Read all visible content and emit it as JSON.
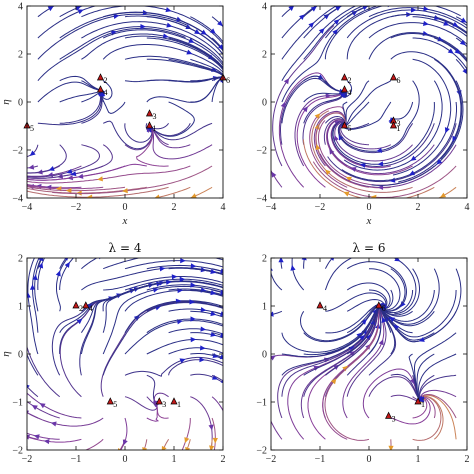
{
  "chart_data": [
    {
      "type": "streamplot",
      "title": "",
      "xlabel": "x",
      "ylabel": "η",
      "xlim": [
        -4,
        4
      ],
      "ylim": [
        -4,
        4
      ],
      "xticks": [
        -4,
        -2,
        0,
        2,
        4
      ],
      "yticks": [
        -4,
        -2,
        0,
        2,
        4
      ],
      "xtick_labels": [
        "−4",
        "−2",
        "0",
        "2",
        "4"
      ],
      "ytick_labels": [
        "−4",
        "−2",
        "0",
        "2",
        "4"
      ],
      "critical_points": [
        {
          "label": "2",
          "x": -1.0,
          "y": 1.0
        },
        {
          "label": "4",
          "x": -1.0,
          "y": 0.5
        },
        {
          "label": "3",
          "x": 1.0,
          "y": -0.5
        },
        {
          "label": "1",
          "x": 1.0,
          "y": -1.0
        },
        {
          "label": "5",
          "x": -4.0,
          "y": -1.0
        },
        {
          "label": "6",
          "x": 4.0,
          "y": 1.0
        }
      ]
    },
    {
      "type": "streamplot",
      "title": "",
      "xlabel": "x",
      "ylabel": "",
      "xlim": [
        -4,
        4
      ],
      "ylim": [
        -4,
        4
      ],
      "xticks": [
        -4,
        -2,
        0,
        2,
        4
      ],
      "yticks": [
        -4,
        -2,
        0,
        2,
        4
      ],
      "xtick_labels": [
        "−4",
        "−2",
        "0",
        "2",
        "4"
      ],
      "ytick_labels": [
        "−4",
        "−2",
        "0",
        "2",
        "4"
      ],
      "critical_points": [
        {
          "label": "2",
          "x": -1.0,
          "y": 1.0
        },
        {
          "label": "4",
          "x": -1.0,
          "y": 0.5
        },
        {
          "label": "6",
          "x": 1.0,
          "y": 1.0
        },
        {
          "label": "3",
          "x": 1.0,
          "y": -0.8
        },
        {
          "label": "1",
          "x": 1.0,
          "y": -1.0
        },
        {
          "label": "5",
          "x": -1.0,
          "y": -1.0
        }
      ]
    },
    {
      "type": "streamplot",
      "title": "λ = 4",
      "xlabel": "",
      "ylabel": "η",
      "xlim": [
        -2,
        2
      ],
      "ylim": [
        -2,
        2
      ],
      "xticks": [
        -2,
        -1,
        0,
        1,
        2
      ],
      "yticks": [
        -2,
        -1,
        0,
        1,
        2
      ],
      "xtick_labels": [
        "−2",
        "−1",
        "0",
        "1",
        "2"
      ],
      "ytick_labels": [
        "−2",
        "−1",
        "0",
        "1",
        "2"
      ],
      "critical_points": [
        {
          "label": "2",
          "x": -1.0,
          "y": 1.0
        },
        {
          "label": "4",
          "x": -0.8,
          "y": 1.0
        },
        {
          "label": "5",
          "x": -0.3,
          "y": -1.0
        },
        {
          "label": "3",
          "x": 0.7,
          "y": -1.0
        },
        {
          "label": "1",
          "x": 1.0,
          "y": -1.0
        }
      ]
    },
    {
      "type": "streamplot",
      "title": "λ = 6",
      "xlabel": "",
      "ylabel": "",
      "xlim": [
        -2,
        2
      ],
      "ylim": [
        -2,
        2
      ],
      "xticks": [
        -2,
        -1,
        0,
        1,
        2
      ],
      "yticks": [
        -2,
        -1,
        0,
        1,
        2
      ],
      "xtick_labels": [
        "−2",
        "−1",
        "0",
        "1",
        "2"
      ],
      "ytick_labels": [
        "−2",
        "−1",
        "0",
        "1",
        "2"
      ],
      "critical_points": [
        {
          "label": "4",
          "x": -1.0,
          "y": 1.0
        },
        {
          "label": "6",
          "x": 0.2,
          "y": 1.0
        },
        {
          "label": "3",
          "x": 0.4,
          "y": -1.3
        },
        {
          "label": "1",
          "x": 1.0,
          "y": -1.0
        }
      ]
    }
  ],
  "colors": {
    "stream_dark": "#2b2f86",
    "stream_mid": "#8a3f9a",
    "stream_hot": "#e7a23b",
    "arrow_blue": "#1f21c8",
    "arrow_orange": "#e49a2b",
    "point_red": "#c01818"
  }
}
